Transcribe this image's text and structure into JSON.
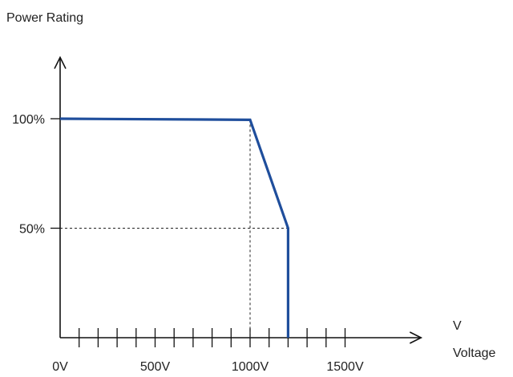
{
  "chart_data": {
    "type": "line",
    "title": "",
    "ylabel": "Power Rating",
    "xlabel": "Voltage",
    "x_unit": "V",
    "x_tick_labels": [
      "0V",
      "500V",
      "1000V",
      "1500V"
    ],
    "x_tick_values": [
      0,
      500,
      1000,
      1500
    ],
    "x_minor_step": 100,
    "y_tick_labels": [
      "100%",
      "50%"
    ],
    "y_tick_values": [
      100,
      50
    ],
    "xlim": [
      0,
      1900
    ],
    "ylim": [
      0,
      128
    ],
    "grid": false,
    "legend": "none",
    "series": [
      {
        "color": "#1f4e9c",
        "x": [
          0,
          1000,
          1200,
          1200
        ],
        "y": [
          100,
          99.5,
          50,
          0
        ]
      }
    ],
    "guides": [
      {
        "x": 1000,
        "y": 99.5
      },
      {
        "x": 1200,
        "y": 50
      }
    ]
  }
}
